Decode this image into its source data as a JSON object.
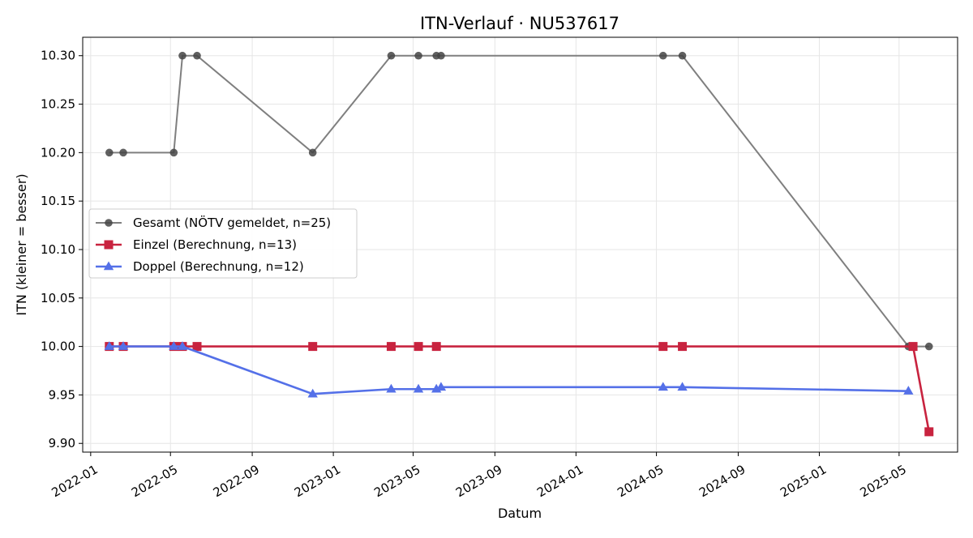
{
  "chart_data": {
    "type": "line",
    "title": "ITN-Verlauf · NU537617",
    "xlabel": "Datum",
    "ylabel": "ITN  (kleiner = besser)",
    "x_axis_type": "date",
    "xlim": [
      "2021-12-20",
      "2025-07-28"
    ],
    "ylim": [
      9.891,
      10.319
    ],
    "grid": true,
    "legend_location": "center-left",
    "x_ticks": [
      "2022-01-01",
      "2022-05-01",
      "2022-09-01",
      "2023-01-01",
      "2023-05-01",
      "2023-09-01",
      "2024-01-01",
      "2024-05-01",
      "2024-09-01",
      "2025-01-01",
      "2025-05-01"
    ],
    "x_tick_labels": [
      "2022-01",
      "2022-05",
      "2022-09",
      "2023-01",
      "2023-05",
      "2023-09",
      "2024-01",
      "2024-05",
      "2024-09",
      "2025-01",
      "2025-05"
    ],
    "y_ticks": [
      9.9,
      9.95,
      10.0,
      10.05,
      10.1,
      10.15,
      10.2,
      10.25,
      10.3
    ],
    "y_tick_labels": [
      "9.90",
      "9.95",
      "10.00",
      "10.05",
      "10.10",
      "10.15",
      "10.20",
      "10.25",
      "10.30"
    ],
    "series": [
      {
        "name": "Gesamt (NÖTV gemeldet, n=25)",
        "color": "#7f7f7f",
        "marker_color": "#444444",
        "marker": "circle",
        "points": [
          {
            "x": "2022-01-29",
            "y": 10.2
          },
          {
            "x": "2022-02-19",
            "y": 10.2
          },
          {
            "x": "2022-05-06",
            "y": 10.2
          },
          {
            "x": "2022-05-19",
            "y": 10.3
          },
          {
            "x": "2022-06-10",
            "y": 10.3
          },
          {
            "x": "2022-12-01",
            "y": 10.2
          },
          {
            "x": "2023-03-29",
            "y": 10.3
          },
          {
            "x": "2023-05-09",
            "y": 10.3
          },
          {
            "x": "2023-06-05",
            "y": 10.3
          },
          {
            "x": "2023-06-12",
            "y": 10.3
          },
          {
            "x": "2024-05-11",
            "y": 10.3
          },
          {
            "x": "2024-06-09",
            "y": 10.3
          },
          {
            "x": "2025-05-15",
            "y": 10.0
          },
          {
            "x": "2025-06-15",
            "y": 10.0
          }
        ]
      },
      {
        "name": "Einzel (Berechnung, n=13)",
        "color": "#c8233f",
        "marker": "square",
        "points": [
          {
            "x": "2022-01-29",
            "y": 10.0
          },
          {
            "x": "2022-02-19",
            "y": 10.0
          },
          {
            "x": "2022-05-06",
            "y": 10.0
          },
          {
            "x": "2022-05-19",
            "y": 10.0
          },
          {
            "x": "2022-06-10",
            "y": 10.0
          },
          {
            "x": "2022-12-01",
            "y": 10.0
          },
          {
            "x": "2023-03-29",
            "y": 10.0
          },
          {
            "x": "2023-05-09",
            "y": 10.0
          },
          {
            "x": "2023-06-05",
            "y": 10.0
          },
          {
            "x": "2024-05-11",
            "y": 10.0
          },
          {
            "x": "2024-06-09",
            "y": 10.0
          },
          {
            "x": "2025-05-22",
            "y": 10.0
          },
          {
            "x": "2025-06-15",
            "y": 9.912
          }
        ]
      },
      {
        "name": "Doppel (Berechnung, n=12)",
        "color": "#5470e8",
        "marker": "triangle",
        "points": [
          {
            "x": "2022-01-29",
            "y": 10.0
          },
          {
            "x": "2022-02-19",
            "y": 10.0
          },
          {
            "x": "2022-05-06",
            "y": 10.0
          },
          {
            "x": "2022-05-19",
            "y": 10.0
          },
          {
            "x": "2022-12-01",
            "y": 9.951
          },
          {
            "x": "2023-03-29",
            "y": 9.956
          },
          {
            "x": "2023-05-09",
            "y": 9.956
          },
          {
            "x": "2023-06-05",
            "y": 9.956
          },
          {
            "x": "2023-06-12",
            "y": 9.958
          },
          {
            "x": "2024-05-11",
            "y": 9.958
          },
          {
            "x": "2024-06-09",
            "y": 9.958
          },
          {
            "x": "2025-05-15",
            "y": 9.954
          }
        ]
      }
    ]
  }
}
